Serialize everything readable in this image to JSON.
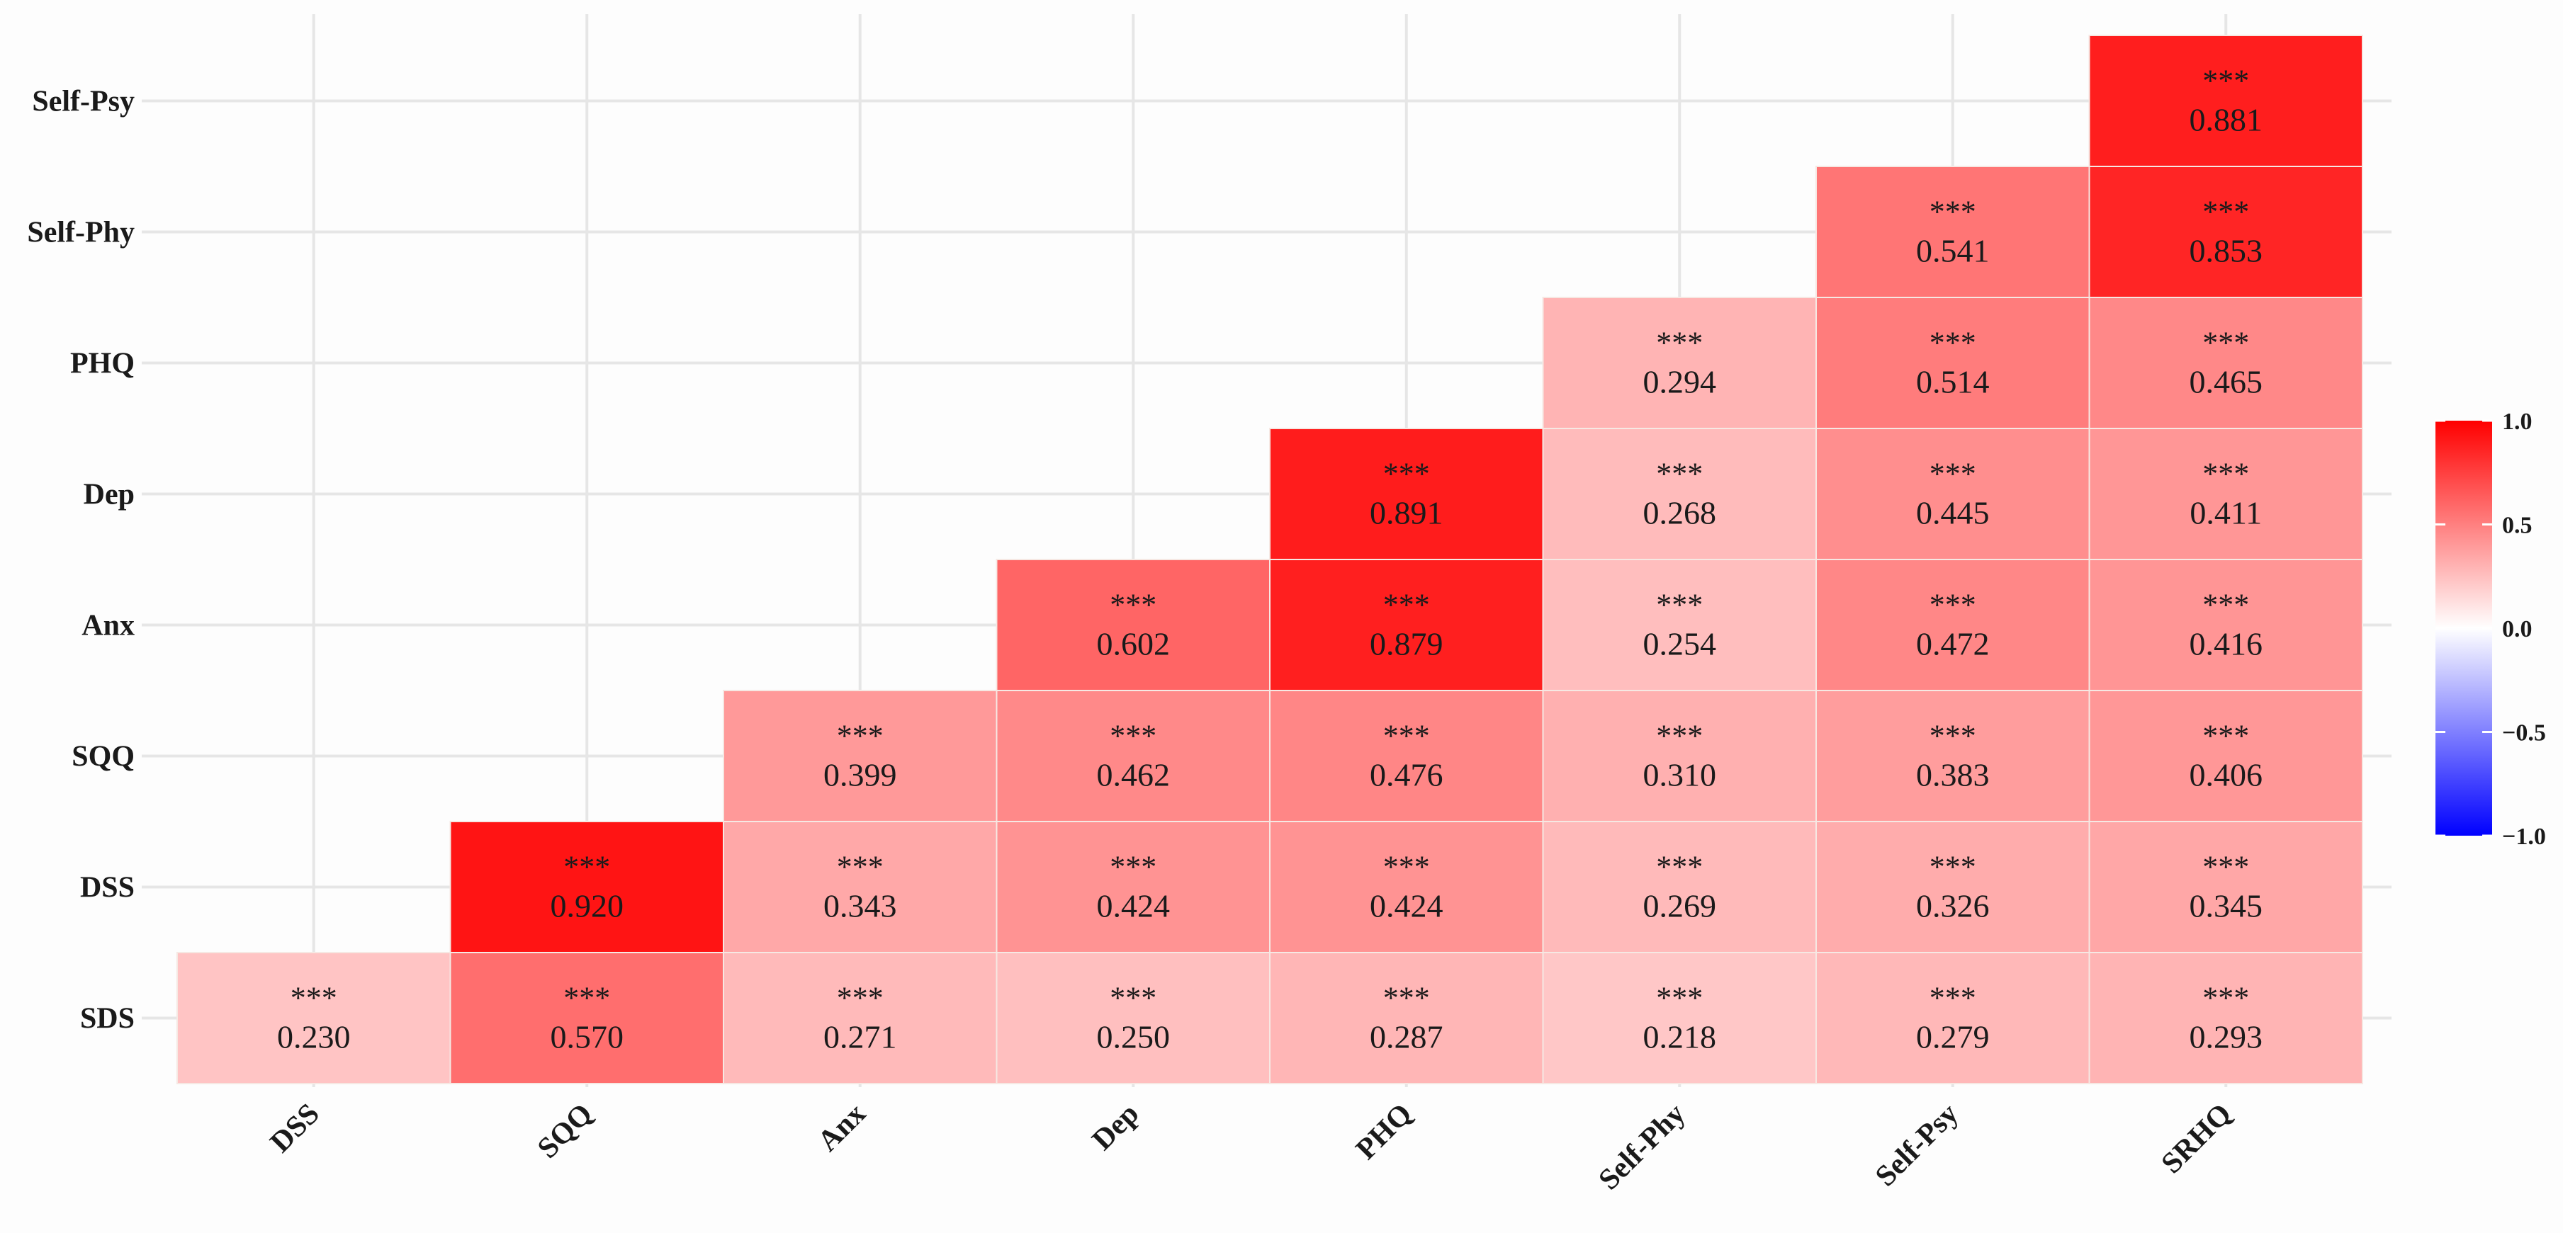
{
  "chart_data": {
    "type": "heatmap",
    "title": "",
    "xlabel": "",
    "ylabel": "",
    "x_categories": [
      "DSS",
      "SQQ",
      "Anx",
      "Dep",
      "PHQ",
      "Self-Phy",
      "Self-Psy",
      "SRHQ"
    ],
    "y_categories": [
      "SDS",
      "DSS",
      "SQQ",
      "Anx",
      "Dep",
      "PHQ",
      "Self-Phy",
      "Self-Psy"
    ],
    "significance_label": "***",
    "cells": [
      {
        "x": "DSS",
        "y": "SDS",
        "value": 0.23,
        "label": "0.230"
      },
      {
        "x": "SQQ",
        "y": "SDS",
        "value": 0.57,
        "label": "0.570"
      },
      {
        "x": "Anx",
        "y": "SDS",
        "value": 0.271,
        "label": "0.271"
      },
      {
        "x": "Dep",
        "y": "SDS",
        "value": 0.25,
        "label": "0.250"
      },
      {
        "x": "PHQ",
        "y": "SDS",
        "value": 0.287,
        "label": "0.287"
      },
      {
        "x": "Self-Phy",
        "y": "SDS",
        "value": 0.218,
        "label": "0.218"
      },
      {
        "x": "Self-Psy",
        "y": "SDS",
        "value": 0.279,
        "label": "0.279"
      },
      {
        "x": "SRHQ",
        "y": "SDS",
        "value": 0.293,
        "label": "0.293"
      },
      {
        "x": "SQQ",
        "y": "DSS",
        "value": 0.92,
        "label": "0.920"
      },
      {
        "x": "Anx",
        "y": "DSS",
        "value": 0.343,
        "label": "0.343"
      },
      {
        "x": "Dep",
        "y": "DSS",
        "value": 0.424,
        "label": "0.424"
      },
      {
        "x": "PHQ",
        "y": "DSS",
        "value": 0.424,
        "label": "0.424"
      },
      {
        "x": "Self-Phy",
        "y": "DSS",
        "value": 0.269,
        "label": "0.269"
      },
      {
        "x": "Self-Psy",
        "y": "DSS",
        "value": 0.326,
        "label": "0.326"
      },
      {
        "x": "SRHQ",
        "y": "DSS",
        "value": 0.345,
        "label": "0.345"
      },
      {
        "x": "Anx",
        "y": "SQQ",
        "value": 0.399,
        "label": "0.399"
      },
      {
        "x": "Dep",
        "y": "SQQ",
        "value": 0.462,
        "label": "0.462"
      },
      {
        "x": "PHQ",
        "y": "SQQ",
        "value": 0.476,
        "label": "0.476"
      },
      {
        "x": "Self-Phy",
        "y": "SQQ",
        "value": 0.31,
        "label": "0.310"
      },
      {
        "x": "Self-Psy",
        "y": "SQQ",
        "value": 0.383,
        "label": "0.383"
      },
      {
        "x": "SRHQ",
        "y": "SQQ",
        "value": 0.406,
        "label": "0.406"
      },
      {
        "x": "Dep",
        "y": "Anx",
        "value": 0.602,
        "label": "0.602"
      },
      {
        "x": "PHQ",
        "y": "Anx",
        "value": 0.879,
        "label": "0.879"
      },
      {
        "x": "Self-Phy",
        "y": "Anx",
        "value": 0.254,
        "label": "0.254"
      },
      {
        "x": "Self-Psy",
        "y": "Anx",
        "value": 0.472,
        "label": "0.472"
      },
      {
        "x": "SRHQ",
        "y": "Anx",
        "value": 0.416,
        "label": "0.416"
      },
      {
        "x": "PHQ",
        "y": "Dep",
        "value": 0.891,
        "label": "0.891"
      },
      {
        "x": "Self-Phy",
        "y": "Dep",
        "value": 0.268,
        "label": "0.268"
      },
      {
        "x": "Self-Psy",
        "y": "Dep",
        "value": 0.445,
        "label": "0.445"
      },
      {
        "x": "SRHQ",
        "y": "Dep",
        "value": 0.411,
        "label": "0.411"
      },
      {
        "x": "Self-Phy",
        "y": "PHQ",
        "value": 0.294,
        "label": "0.294"
      },
      {
        "x": "Self-Psy",
        "y": "PHQ",
        "value": 0.514,
        "label": "0.514"
      },
      {
        "x": "SRHQ",
        "y": "PHQ",
        "value": 0.465,
        "label": "0.465"
      },
      {
        "x": "Self-Psy",
        "y": "Self-Phy",
        "value": 0.541,
        "label": "0.541"
      },
      {
        "x": "SRHQ",
        "y": "Self-Phy",
        "value": 0.853,
        "label": "0.853"
      },
      {
        "x": "SRHQ",
        "y": "Self-Psy",
        "value": 0.881,
        "label": "0.881"
      }
    ],
    "colorbar": {
      "range": [
        -1.0,
        1.0
      ],
      "low_color": "#0000ff",
      "mid_color": "#ffffff",
      "high_color": "#ff0000",
      "ticks": [
        {
          "value": 1.0,
          "label": "1.0"
        },
        {
          "value": 0.5,
          "label": "0.5"
        },
        {
          "value": 0.0,
          "label": "0.0"
        },
        {
          "value": -0.5,
          "label": "−0.5"
        },
        {
          "value": -1.0,
          "label": "−1.0"
        }
      ],
      "position": "right"
    }
  }
}
